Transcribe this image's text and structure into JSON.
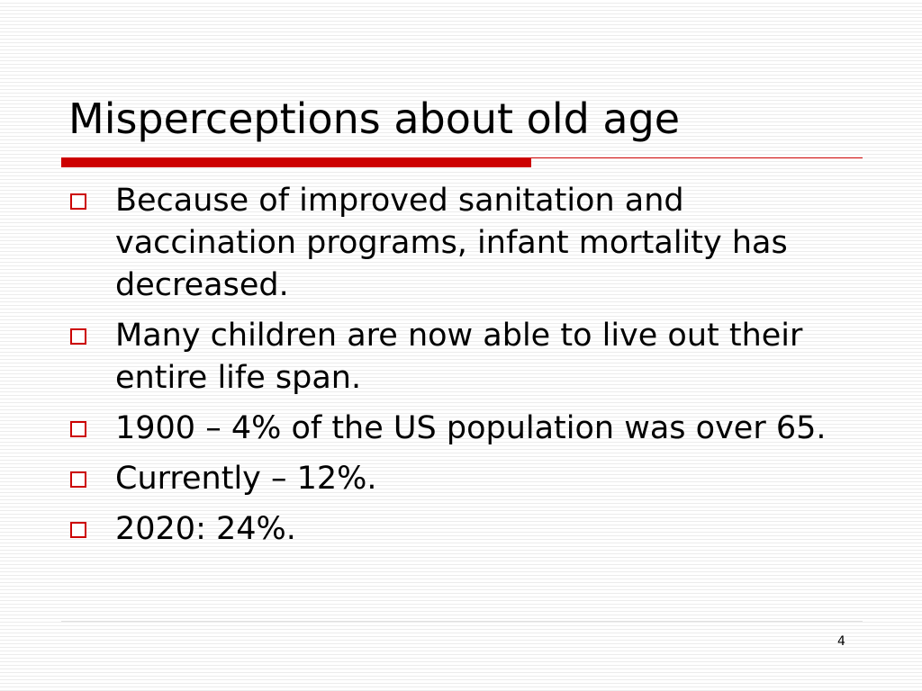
{
  "slide": {
    "title": "Misperceptions about old age",
    "bullets": [
      "Because of improved sanitation and vaccination programs, infant mortality has decreased.",
      "Many children are now able to live out their entire life span.",
      "1900 – 4% of the US population was over 65.",
      "Currently – 12%.",
      "2020:  24%."
    ],
    "page_number": "4"
  }
}
